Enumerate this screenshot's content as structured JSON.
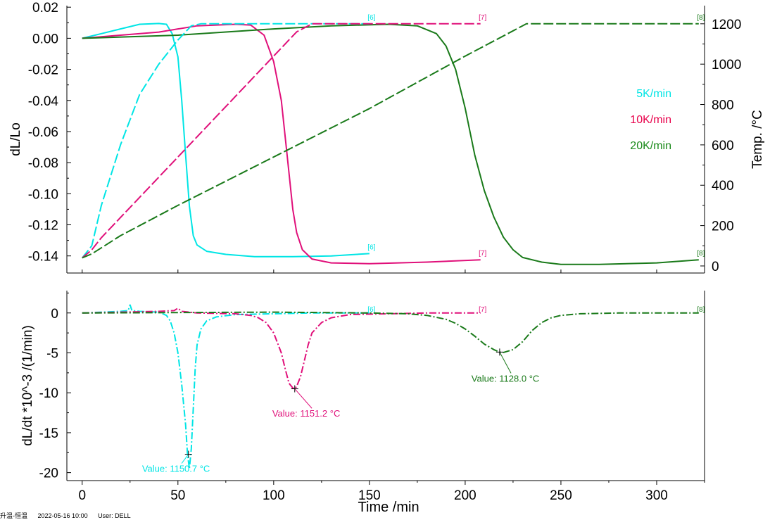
{
  "chart_data": [
    {
      "type": "line",
      "title": "",
      "xlabel": "",
      "ylabel": "dL/Lo",
      "y2label": "Temp. /°C",
      "xlim": [
        -8,
        325
      ],
      "ylim": [
        -0.151,
        0.021
      ],
      "y2lim": [
        -35,
        1290
      ],
      "yticks": [
        "0.02",
        "0.00",
        "-0.02",
        "-0.04",
        "-0.06",
        "-0.08",
        "-0.10",
        "-0.12",
        "-0.14"
      ],
      "ytick_values": [
        0.02,
        0,
        -0.02,
        -0.04,
        -0.06,
        -0.08,
        -0.1,
        -0.12,
        -0.14
      ],
      "y2ticks": [
        "1200",
        "1000",
        "800",
        "600",
        "400",
        "200",
        "0"
      ],
      "y2tick_values": [
        1200,
        1000,
        800,
        600,
        400,
        200,
        0
      ],
      "legend": {
        "placement": "right",
        "entries": [
          {
            "label": "5K/min",
            "color": "#00e5e5"
          },
          {
            "label": "10K/min",
            "color": "#e8004a"
          },
          {
            "label": "20K/min",
            "color": "#1a8a1a"
          }
        ]
      },
      "series": [
        {
          "name": "5K/min",
          "marker": "[6]",
          "color": "#00e5e5",
          "kind": "dL",
          "x": [
            0,
            10,
            20,
            30,
            40,
            44,
            47,
            50,
            52,
            54,
            56,
            58,
            60,
            65,
            75,
            90,
            110,
            130,
            150
          ],
          "y": [
            0,
            0.003,
            0.006,
            0.009,
            0.0095,
            0.009,
            0.003,
            -0.012,
            -0.04,
            -0.075,
            -0.108,
            -0.127,
            -0.133,
            -0.137,
            -0.139,
            -0.1405,
            -0.1405,
            -0.14,
            -0.1385
          ]
        },
        {
          "name": "10K/min",
          "marker": "[7]",
          "color": "#e0107a",
          "kind": "dL",
          "x": [
            0,
            20,
            40,
            60,
            80,
            88,
            95,
            100,
            104,
            107,
            110,
            112,
            115,
            120,
            130,
            150,
            180,
            208
          ],
          "y": [
            0,
            0.002,
            0.004,
            0.008,
            0.009,
            0.0085,
            0.002,
            -0.015,
            -0.04,
            -0.075,
            -0.11,
            -0.125,
            -0.136,
            -0.142,
            -0.1445,
            -0.145,
            -0.144,
            -0.1425
          ]
        },
        {
          "name": "20K/min",
          "marker": "[8]",
          "color": "#1a7a1a",
          "kind": "dL",
          "x": [
            0,
            50,
            100,
            130,
            160,
            175,
            185,
            190,
            195,
            200,
            205,
            210,
            215,
            220,
            225,
            230,
            240,
            250,
            270,
            300,
            322
          ],
          "y": [
            0,
            0.002,
            0.006,
            0.008,
            0.009,
            0.008,
            0.003,
            -0.005,
            -0.02,
            -0.045,
            -0.075,
            -0.098,
            -0.115,
            -0.128,
            -0.136,
            -0.141,
            -0.144,
            -0.1455,
            -0.1455,
            -0.1445,
            -0.1425
          ]
        },
        {
          "name": "5K/min",
          "marker": "[6]",
          "color": "#00e5e5",
          "kind": "temp",
          "x": [
            0,
            5,
            10,
            20,
            30,
            40,
            50,
            57,
            62,
            150
          ],
          "y": [
            40,
            100,
            300,
            600,
            850,
            1000,
            1120,
            1190,
            1200,
            1200
          ]
        },
        {
          "name": "10K/min",
          "marker": "[7]",
          "color": "#e0107a",
          "kind": "temp",
          "x": [
            0,
            5,
            10,
            20,
            40,
            60,
            80,
            100,
            112,
            120,
            208
          ],
          "y": [
            40,
            80,
            140,
            240,
            440,
            640,
            840,
            1040,
            1160,
            1200,
            1200
          ]
        },
        {
          "name": "20K/min",
          "marker": "[8]",
          "color": "#1a7a1a",
          "kind": "temp",
          "x": [
            0,
            5,
            10,
            20,
            50,
            100,
            150,
            200,
            232,
            235,
            322
          ],
          "y": [
            40,
            60,
            90,
            150,
            300,
            540,
            780,
            1040,
            1200,
            1200,
            1200
          ]
        }
      ]
    },
    {
      "type": "line",
      "title": "",
      "xlabel": "Time /min",
      "ylabel": "dL/dt *10^-3 /(1/min)",
      "xlim": [
        -8,
        325
      ],
      "ylim": [
        -21,
        2.8
      ],
      "xticks": [
        "0",
        "50",
        "100",
        "150",
        "200",
        "250",
        "300"
      ],
      "xtick_values": [
        0,
        50,
        100,
        150,
        200,
        250,
        300
      ],
      "yticks": [
        "0",
        "-5",
        "-10",
        "-15",
        "-20"
      ],
      "ytick_values": [
        0,
        -5,
        -10,
        -15,
        -20
      ],
      "series": [
        {
          "name": "5K/min",
          "marker": "[6]",
          "color": "#00e5e5",
          "x": [
            0,
            20,
            24,
            25,
            26,
            30,
            40,
            44,
            46,
            48,
            50,
            52,
            54,
            55,
            56,
            57,
            58,
            59,
            60,
            62,
            65,
            70,
            80,
            100,
            120,
            150
          ],
          "y": [
            0,
            0.2,
            0.3,
            1.0,
            0.3,
            0.2,
            0.1,
            -0.3,
            -1,
            -2.5,
            -5,
            -9,
            -14,
            -17.7,
            -19.5,
            -17,
            -12,
            -7,
            -4,
            -2,
            -1,
            -0.5,
            -0.2,
            -0.1,
            0,
            0
          ]
        },
        {
          "name": "10K/min",
          "marker": "[7]",
          "color": "#e0107a",
          "x": [
            0,
            40,
            48,
            50,
            52,
            60,
            80,
            88,
            92,
            96,
            100,
            104,
            106,
            108,
            110,
            111,
            112,
            114,
            116,
            118,
            120,
            125,
            130,
            140,
            160,
            180,
            208
          ],
          "y": [
            0,
            0.2,
            0.3,
            0.6,
            0.2,
            0,
            -0.1,
            -0.3,
            -0.6,
            -1.2,
            -2.5,
            -5,
            -7,
            -8.8,
            -9.4,
            -9.5,
            -9.2,
            -8,
            -6,
            -4,
            -2.5,
            -1.2,
            -0.6,
            -0.2,
            -0.1,
            0,
            0
          ]
        },
        {
          "name": "20K/min",
          "marker": "[8]",
          "color": "#1a7a1a",
          "x": [
            0,
            50,
            100,
            150,
            170,
            180,
            190,
            195,
            200,
            205,
            210,
            215,
            218,
            220,
            225,
            230,
            235,
            240,
            245,
            250,
            260,
            280,
            300,
            322
          ],
          "y": [
            0,
            0.05,
            0.1,
            0,
            -0.1,
            -0.3,
            -0.8,
            -1.3,
            -2,
            -2.9,
            -3.9,
            -4.6,
            -4.9,
            -4.95,
            -4.6,
            -3.6,
            -2.2,
            -1.2,
            -0.6,
            -0.3,
            -0.1,
            0,
            0,
            0
          ]
        }
      ],
      "annotations": [
        {
          "text": "Value: 1150.7 °C",
          "x": 55.5,
          "y": -17.7,
          "color": "#00e5e5",
          "label_x": 49,
          "label_y": -19.9
        },
        {
          "text": "Value: 1151.2 °C",
          "x": 111,
          "y": -9.5,
          "color": "#e0107a",
          "label_x": 117,
          "label_y": -13.0
        },
        {
          "text": "Value: 1128.0 °C",
          "x": 218,
          "y": -4.9,
          "color": "#1a7a1a",
          "label_x": 221,
          "label_y": -8.6
        }
      ]
    }
  ],
  "footer": {
    "items": [
      "升温-恒温",
      "2022-05-16 10:00",
      "User: DELL"
    ]
  }
}
